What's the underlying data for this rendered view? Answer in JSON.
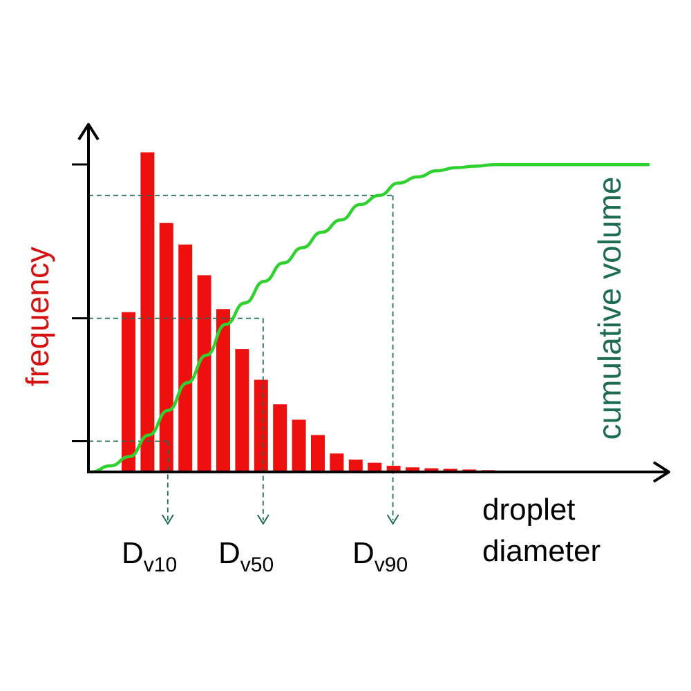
{
  "colors": {
    "bars": "#ee0f0f",
    "curve": "#2fd12f",
    "axis": "#000000",
    "guides": "#1c6b52",
    "ylabel": "#d41212",
    "y2label": "#1c6b52"
  },
  "chart_data": {
    "type": "bar",
    "title": "",
    "ylabel": "frequency",
    "y2label": "cumulative volume",
    "xlabel": [
      "droplet",
      "diameter"
    ],
    "legend": "none",
    "grid": false,
    "axis_ticks": "unlabeled",
    "frequency_bars": {
      "name": "frequency",
      "values": [
        0.52,
        1.04,
        0.81,
        0.74,
        0.64,
        0.53,
        0.4,
        0.3,
        0.22,
        0.17,
        0.12,
        0.06,
        0.04,
        0.03,
        0.02,
        0.015,
        0.012,
        0.01,
        0.008,
        0.006,
        0.004,
        0.003,
        0.002,
        0.0
      ]
    },
    "cumulative_curve": {
      "name": "cumulative volume",
      "x": [
        0,
        1,
        2,
        3,
        4,
        5,
        6,
        7,
        8,
        9,
        10,
        11,
        12,
        13,
        14,
        15,
        16,
        17,
        18,
        19,
        20,
        21,
        22,
        23,
        24,
        25,
        26,
        27,
        28,
        29
      ],
      "y": [
        0.0,
        0.02,
        0.05,
        0.12,
        0.2,
        0.29,
        0.38,
        0.48,
        0.55,
        0.62,
        0.68,
        0.73,
        0.78,
        0.82,
        0.87,
        0.9,
        0.94,
        0.96,
        0.98,
        0.99,
        0.995,
        1.0,
        1.0,
        1.0,
        1.0,
        1.0,
        1.0,
        1.0,
        1.0,
        1.0
      ]
    },
    "ylim": [
      0,
      1.05
    ],
    "percentiles": [
      {
        "name": "Dv10",
        "main": "D",
        "sub": "v10",
        "level": 0.1,
        "bin": 2
      },
      {
        "name": "Dv50",
        "main": "D",
        "sub": "v50",
        "level": 0.5,
        "bin": 7
      },
      {
        "name": "Dv90",
        "main": "D",
        "sub": "v90",
        "level": 0.9,
        "bin": 14
      }
    ]
  }
}
